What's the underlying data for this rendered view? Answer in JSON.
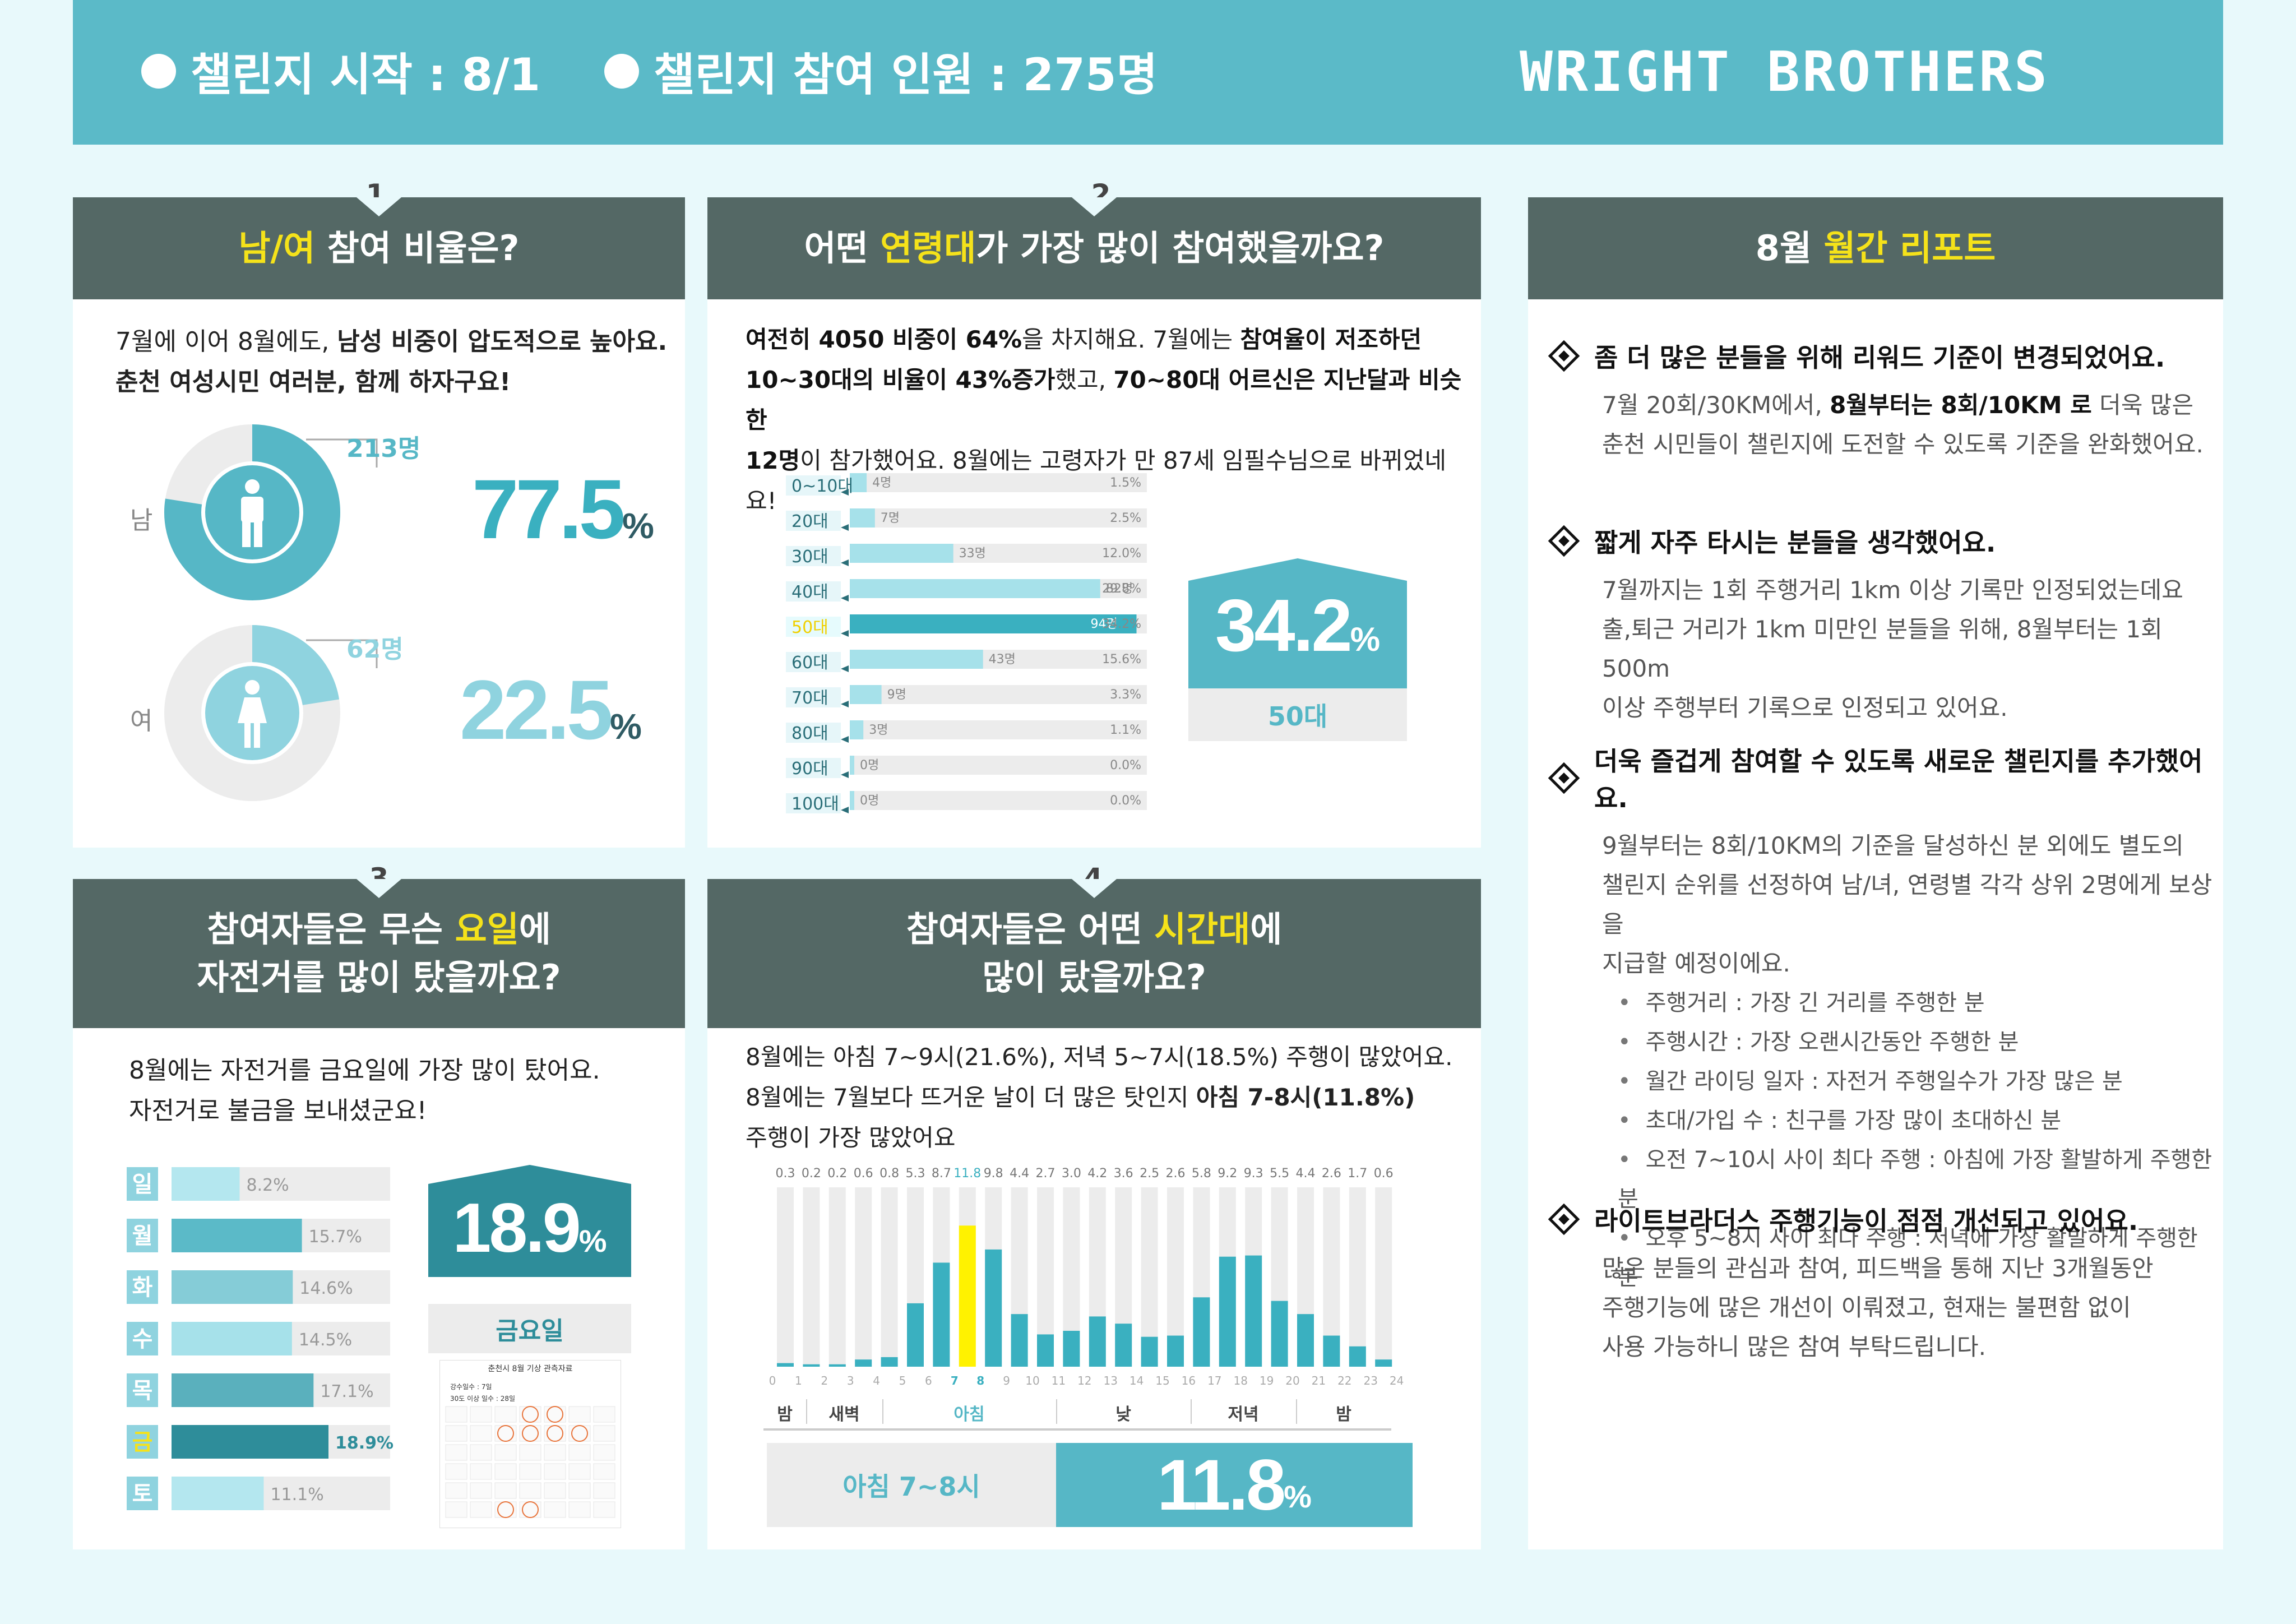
{
  "header": {
    "start_label": "챌린지 시작 : 8/1",
    "participants_label": "챌린지 참여 인원 : 275명",
    "brand": "WRIGHT BROTHERS"
  },
  "section1": {
    "number": "1",
    "title_hl": "남/여",
    "title_rest": " 참여 비율은?",
    "desc_line1_plain": "7월에 이어 8월에도, ",
    "desc_line1_bold": "남성 비중이 압도적으로 높아요.",
    "desc_line2": "춘천 여성시민 여러분, 함께 하자구요!",
    "male": {
      "label": "남",
      "count": "213명",
      "percent": "77.5",
      "unit": "%"
    },
    "female": {
      "label": "여",
      "count": "62명",
      "percent": "22.5",
      "unit": "%"
    }
  },
  "section2": {
    "number": "2",
    "title_pre": "어떤 ",
    "title_hl": "연령대",
    "title_post": "가 가장 많이 참여했을까요?",
    "desc": [
      [
        [
          "여전히 4050 비중이 64%",
          true
        ],
        [
          "을 차지해요. 7월에는 ",
          false
        ],
        [
          "참여율이 저조하던",
          true
        ]
      ],
      [
        [
          "10~30대의 비율이 43%증가",
          true
        ],
        [
          "했고, ",
          false
        ],
        [
          "70~80대 어르신은 지난달과 비슷한",
          true
        ]
      ],
      [
        [
          "12명",
          true
        ],
        [
          "이 참가했어요. 8월에는 고령자가 만 87세 임필수님으로 바뀌었네요!",
          false
        ]
      ]
    ],
    "highlight_value": "34.2",
    "highlight_unit": "%",
    "highlight_label": "50대"
  },
  "section3": {
    "number": "3",
    "title_line1_pre": "참여자들은 무슨 ",
    "title_line1_hl": "요일",
    "title_line1_post": "에",
    "title_line2": "자전거를 많이 탔을까요?",
    "desc_line1": "8월에는 자전거를 금요일에 가장 많이 탔어요.",
    "desc_line2": "자전거로 불금을 보내셨군요!",
    "highlight_value": "18.9",
    "highlight_unit": "%",
    "highlight_label": "금요일",
    "calendar_title": "춘천시 8월 기상 관측자료",
    "calendar_line1": "강수일수 : 7일",
    "calendar_line2": "30도 이상 일수 : 28일"
  },
  "section4": {
    "number": "4",
    "title_line1_pre": "참여자들은 어떤 ",
    "title_line1_hl": "시간대",
    "title_line1_post": "에",
    "title_line2": "많이 탔을까요?",
    "desc_line1": "8월에는 아침 7~9시(21.6%), 저녁 5~7시(18.5%) 주행이 많았어요.",
    "desc_line2_plain": "8월에는 7월보다 뜨거운 날이 더 많은 탓인지 ",
    "desc_line2_bold": "아침 7-8시(11.8%)",
    "desc_line3": "주행이 가장 많았어요",
    "periods": [
      "밤",
      "새벽",
      "아침",
      "낮",
      "저녁",
      "밤"
    ],
    "highlight_label": "아침 7~8시",
    "highlight_value": "11.8",
    "highlight_unit": "%"
  },
  "report": {
    "title_pre": "8월 ",
    "title_hl": "월간 리포트",
    "items": [
      {
        "title": "좀 더 많은 분들을 위해 리워드 기준이 변경되었어요.",
        "body": [
          [
            [
              "7월 20회/30KM에서, ",
              false
            ],
            [
              "8월부터는 8회/10KM 로",
              true
            ],
            [
              " 더욱 많은",
              false
            ]
          ],
          [
            [
              "춘천 시민들이 챌린지에 도전할 수 있도록 기준을 완화했어요.",
              false
            ]
          ]
        ]
      },
      {
        "title": "짧게 자주 타시는 분들을 생각했어요.",
        "body": [
          [
            [
              "7월까지는 1회 주행거리 1km 이상 기록만 인정되었는데요",
              false
            ]
          ],
          [
            [
              "출,퇴근 거리가 1km 미만인 분들을 위해, 8월부터는 1회 500m",
              false
            ]
          ],
          [
            [
              "이상 주행부터 기록으로 인정되고 있어요.",
              false
            ]
          ]
        ]
      },
      {
        "title": "더욱 즐겁게 참여할 수 있도록 새로운 챌린지를 추가했어요.",
        "body": [
          [
            [
              "9월부터는 8회/10KM의 기준을 달성하신 분 외에도 별도의",
              false
            ]
          ],
          [
            [
              "챌린지 순위를 선정하여 남/녀, 연령별 각각 상위 2명에게 보상을",
              false
            ]
          ],
          [
            [
              "지급할 예정이에요.",
              false
            ]
          ]
        ],
        "bullets": [
          "주행거리 : 가장 긴 거리를 주행한 분",
          "주행시간 : 가장 오랜시간동안 주행한 분",
          "월간 라이딩 일자 : 자전거 주행일수가 가장 많은 분",
          "초대/가입 수 : 친구를 가장 많이 초대하신 분",
          "오전 7~10시 사이 최다 주행 : 아침에 가장 활발하게 주행한 분",
          "오후 5~8시 사이 최다 주행 : 저녁에 가장 활발하게 주행한 분"
        ]
      },
      {
        "title": "라이트브라더스 주행기능이 점점 개선되고 있어요.",
        "body": [
          [
            [
              "많은 분들의 관심과 참여, 피드백을 통해 지난 3개월동안",
              false
            ]
          ],
          [
            [
              "주행기능에 많은 개선이 이뤄졌고, 현재는 불편함 없이",
              false
            ]
          ],
          [
            [
              "사용 가능하니 많은 참여 부탁드립니다.",
              false
            ]
          ]
        ]
      }
    ]
  },
  "chart_data": [
    {
      "type": "pie",
      "categories": [
        "남",
        "여"
      ],
      "values": [
        77.5,
        22.5
      ],
      "counts": [
        213,
        62
      ],
      "colors": {
        "male": "#56b7c6",
        "female": "#8fd3df",
        "track": "#ececec"
      }
    },
    {
      "type": "bar",
      "orientation": "horizontal",
      "categories": [
        "0~10대",
        "20대",
        "30대",
        "40대",
        "50대",
        "60대",
        "70대",
        "80대",
        "90대",
        "100대"
      ],
      "counts": [
        "4명",
        "7명",
        "33명",
        "82명",
        "94명",
        "43명",
        "9명",
        "3명",
        "0명",
        "0명"
      ],
      "percent_labels": [
        "1.5%",
        "2.5%",
        "12.0%",
        "29.8%",
        "34.2%",
        "15.6%",
        "3.3%",
        "1.1%",
        "0.0%",
        "0.0%"
      ],
      "values": [
        1.5,
        2.5,
        12.0,
        29.8,
        34.2,
        15.6,
        3.3,
        1.1,
        0.0,
        0.0
      ],
      "highlight": "50대",
      "colors": {
        "bar": "#a6e1ea",
        "highlight": "#3ab0c0",
        "track": "#ececec"
      }
    },
    {
      "type": "bar",
      "orientation": "horizontal",
      "categories": [
        "일",
        "월",
        "화",
        "수",
        "목",
        "금",
        "토"
      ],
      "percent_labels": [
        "8.2%",
        "15.7%",
        "14.6%",
        "14.5%",
        "17.1%",
        "18.9%",
        "11.1%"
      ],
      "values": [
        8.2,
        15.7,
        14.6,
        14.5,
        17.1,
        18.9,
        11.1
      ],
      "highlight": "금",
      "colors": [
        "#b4e7ef",
        "#5bbac8",
        "#85ccd7",
        "#a6e1ea",
        "#5ab0bd",
        "#2e8d9a",
        "#b4e7ef"
      ]
    },
    {
      "type": "bar",
      "categories": [
        "0",
        "1",
        "2",
        "3",
        "4",
        "5",
        "6",
        "7",
        "8",
        "9",
        "10",
        "11",
        "12",
        "13",
        "14",
        "15",
        "16",
        "17",
        "18",
        "19",
        "20",
        "21",
        "22",
        "23"
      ],
      "x_tick_labels": [
        "0",
        "1",
        "2",
        "3",
        "4",
        "5",
        "6",
        "7",
        "8",
        "9",
        "10",
        "11",
        "12",
        "13",
        "14",
        "15",
        "16",
        "17",
        "18",
        "19",
        "20",
        "21",
        "22",
        "23",
        "24"
      ],
      "values": [
        0.3,
        0.2,
        0.2,
        0.6,
        0.8,
        5.3,
        8.7,
        11.8,
        9.8,
        4.4,
        2.7,
        3.0,
        4.2,
        3.6,
        2.5,
        2.6,
        5.8,
        9.2,
        9.3,
        5.5,
        4.4,
        2.6,
        1.7,
        0.6
      ],
      "value_labels": [
        "0.3",
        "0.2",
        "0.2",
        "0.6",
        "0.8",
        "5.3",
        "8.7",
        "11.8",
        "9.8",
        "4.4",
        "2.7",
        "3.0",
        "4.2",
        "3.6",
        "2.5",
        "2.6",
        "5.8",
        "9.2",
        "9.3",
        "5.5",
        "4.4",
        "2.6",
        "1.7",
        "0.6"
      ],
      "highlight_index": 7,
      "ylim": [
        0,
        15
      ],
      "colors": {
        "bar": "#3ab0c0",
        "highlight": "#fff200",
        "track": "#ececec"
      }
    }
  ]
}
